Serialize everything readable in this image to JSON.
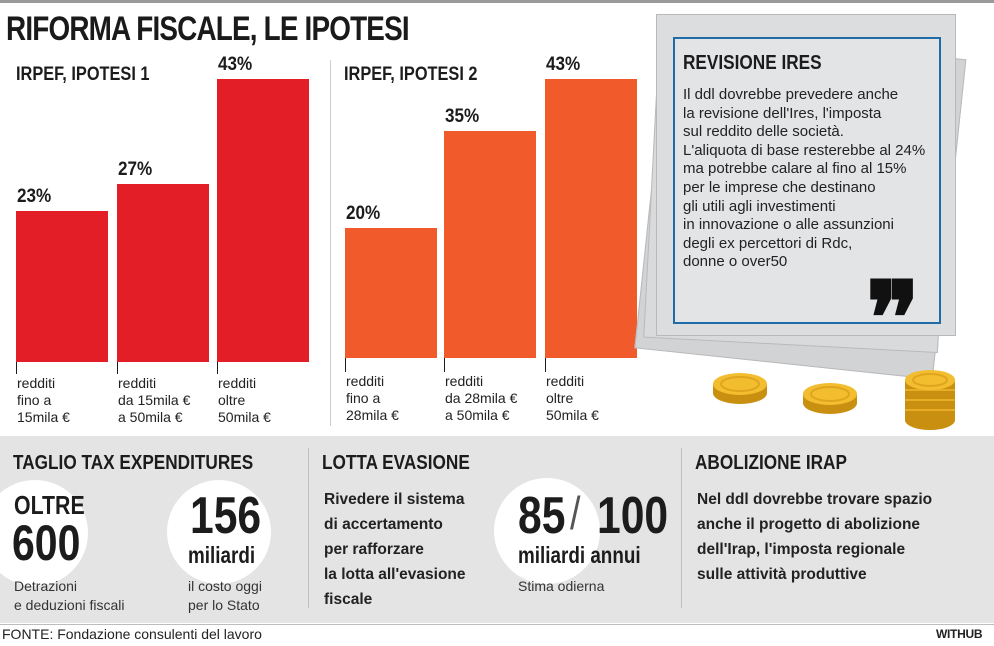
{
  "title": "RIFORMA FISCALE, LE IPOTESI",
  "chart_data": [
    {
      "type": "bar",
      "title": "IRPEF, IPOTESI 1",
      "categories": [
        "redditi\nfino a\n15mila €",
        "redditi\nda 15mila €\na 50mila €",
        "redditi\noltre\n50mila €"
      ],
      "values": [
        23,
        27,
        43
      ],
      "value_labels": [
        "23%",
        "27%",
        "43%"
      ],
      "ylim": [
        0,
        45
      ],
      "color": "#e41e26"
    },
    {
      "type": "bar",
      "title": "IRPEF, IPOTESI 2",
      "categories": [
        "redditi\nfino a\n28mila €",
        "redditi\nda 28mila €\na 50mila €",
        "redditi\noltre\n50mila €"
      ],
      "values": [
        20,
        35,
        43
      ],
      "value_labels": [
        "20%",
        "35%",
        "43%"
      ],
      "ylim": [
        0,
        45
      ],
      "color": "#f15a2b"
    }
  ],
  "ires": {
    "title": "REVISIONE IRES",
    "lines": [
      "Il ddl dovrebbe prevedere anche",
      "la revisione dell'Ires, l'imposta",
      "sul reddito delle società.",
      "L'aliquota di base resterebbe al 24%",
      "ma potrebbe calare al fino al 15%",
      "per le imprese che destinano",
      "gli utili agli investimenti",
      "in innovazione o alle assunzioni",
      "degli ex percettori di Rdc,",
      "donne o over50"
    ],
    "quote_mark": "❞"
  },
  "tax": {
    "title": "TAGLIO TAX EXPENDITURES",
    "oltre": "OLTRE",
    "count": "600",
    "count_desc_1": "Detrazioni",
    "count_desc_2": "e deduzioni fiscali",
    "amount": "156",
    "amount_unit": "miliardi",
    "amount_desc_1": "il costo oggi",
    "amount_desc_2": "per lo Stato"
  },
  "evasione": {
    "title": "LOTTA EVASIONE",
    "lines": [
      "Rivedere il sistema",
      "di accertamento",
      "per rafforzare",
      "la lotta all'evasione",
      "fiscale"
    ],
    "range_low": "85",
    "range_sep": "/",
    "range_high": "100",
    "range_unit": "miliardi annui",
    "range_desc": "Stima odierna"
  },
  "irap": {
    "title": "ABOLIZIONE IRAP",
    "lines": [
      "Nel ddl dovrebbe trovare spazio",
      "anche il progetto di abolizione",
      "dell'Irap, l'imposta regionale",
      "sulle attività produttive"
    ]
  },
  "footer": {
    "source": "FONTE: Fondazione consulenti del lavoro",
    "brand": "WITHUB"
  }
}
